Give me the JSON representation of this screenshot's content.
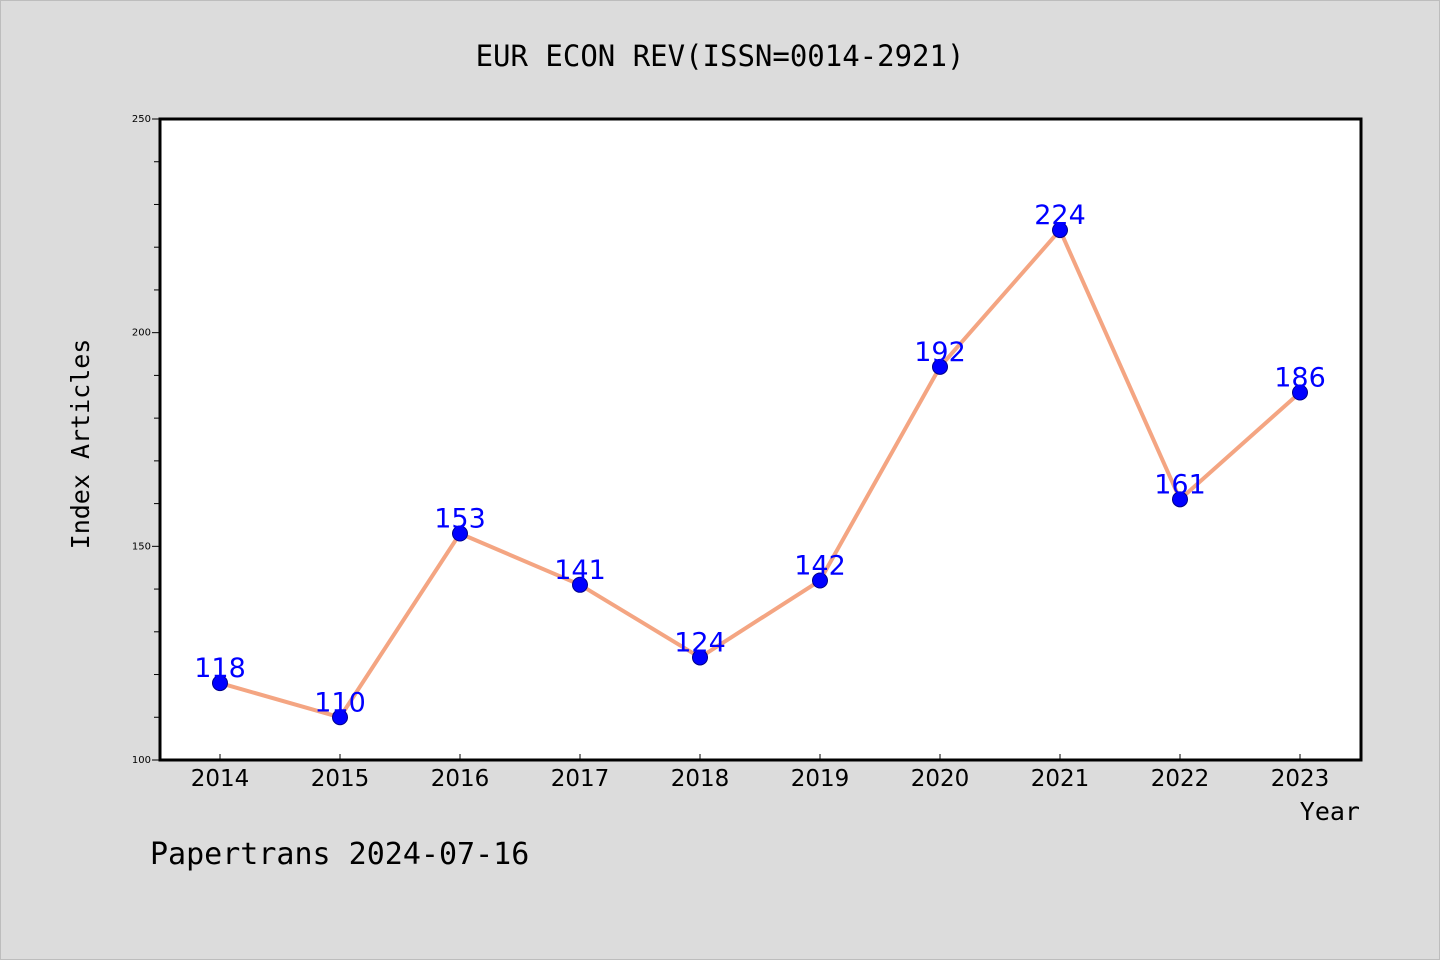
{
  "chart_data": {
    "type": "line",
    "title": "EUR ECON REV(ISSN=0014-2921)",
    "xlabel": "Year",
    "ylabel": "Index Articles",
    "categories": [
      "2014",
      "2015",
      "2016",
      "2017",
      "2018",
      "2019",
      "2020",
      "2021",
      "2022",
      "2023"
    ],
    "series": [
      {
        "values": [
          118,
          110,
          153,
          141,
          124,
          142,
          192,
          224,
          161,
          186
        ]
      }
    ],
    "ylim": [
      100,
      250
    ],
    "yticks": [
      "100",
      "150",
      "200",
      "250"
    ],
    "grid": false,
    "colors": {
      "line": "#f4a582",
      "marker": "#0000ff",
      "data_label": "#0000ff",
      "background": "#dcdcdc",
      "plot_background": "#ffffff"
    }
  },
  "footer": {
    "credit": "Papertrans 2024-07-16"
  }
}
